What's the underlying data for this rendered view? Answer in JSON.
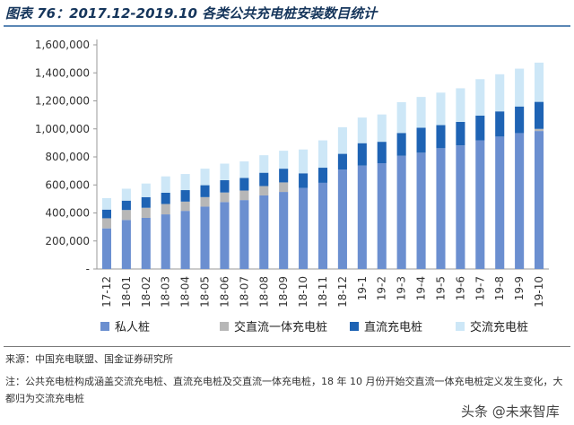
{
  "header": {
    "title": "图表 76：2017.12-2019.10 各类公共充电桩安装数目统计"
  },
  "chart_data": {
    "type": "bar",
    "stacked": true,
    "categories": [
      "17-12",
      "18-01",
      "18-02",
      "18-03",
      "18-04",
      "18-05",
      "18-06",
      "18-07",
      "18-08",
      "18-09",
      "18-10",
      "18-11",
      "18-12",
      "19-1",
      "19-2",
      "19-3",
      "19-4",
      "19-5",
      "19-6",
      "19-7",
      "19-8",
      "19-9",
      "19-10"
    ],
    "series": [
      {
        "name": "私人桩",
        "color": "#6b8fd0",
        "values": [
          290000,
          350000,
          365000,
          390000,
          415000,
          445000,
          478000,
          492000,
          525000,
          550000,
          578000,
          615000,
          710000,
          738000,
          755000,
          808000,
          830000,
          862000,
          882000,
          918000,
          945000,
          970000,
          985000
        ]
      },
      {
        "name": "交直流一体充电桩",
        "color": "#b7b7b7",
        "values": [
          72000,
          71000,
          72000,
          74000,
          66000,
          68000,
          68000,
          68000,
          67000,
          68000,
          0,
          0,
          0,
          0,
          0,
          0,
          0,
          0,
          0,
          0,
          0,
          0,
          15000
        ]
      },
      {
        "name": "直流充电桩",
        "color": "#1e63b4",
        "values": [
          62000,
          67000,
          76000,
          80000,
          82000,
          85000,
          88000,
          90000,
          95000,
          98000,
          105000,
          108000,
          112000,
          160000,
          153000,
          163000,
          178000,
          165000,
          168000,
          177000,
          180000,
          190000,
          193000
        ]
      },
      {
        "name": "交流充电桩",
        "color": "#cde7f7",
        "values": [
          82000,
          85000,
          97000,
          117000,
          115000,
          118000,
          118000,
          118000,
          125000,
          128000,
          170000,
          195000,
          190000,
          183000,
          195000,
          220000,
          220000,
          232000,
          240000,
          260000,
          265000,
          270000,
          280000
        ]
      }
    ],
    "yticks": [
      "-",
      "200,000",
      "400,000",
      "600,000",
      "800,000",
      "1,000,000",
      "1,200,000",
      "1,400,000",
      "1,600,000"
    ],
    "ylim": [
      0,
      1600000
    ],
    "legend_position": "bottom"
  },
  "footer": {
    "source": "来源：中国充电联盟、国金证券研究所",
    "note": "注：公共充电桩构成涵盖交流充电桩、直流充电桩及交直流一体充电桩，18 年 10 月份开始交直流一体充电桩定义发生变化，大都归为交流充电桩",
    "watermark": "头条 @未来智库"
  }
}
